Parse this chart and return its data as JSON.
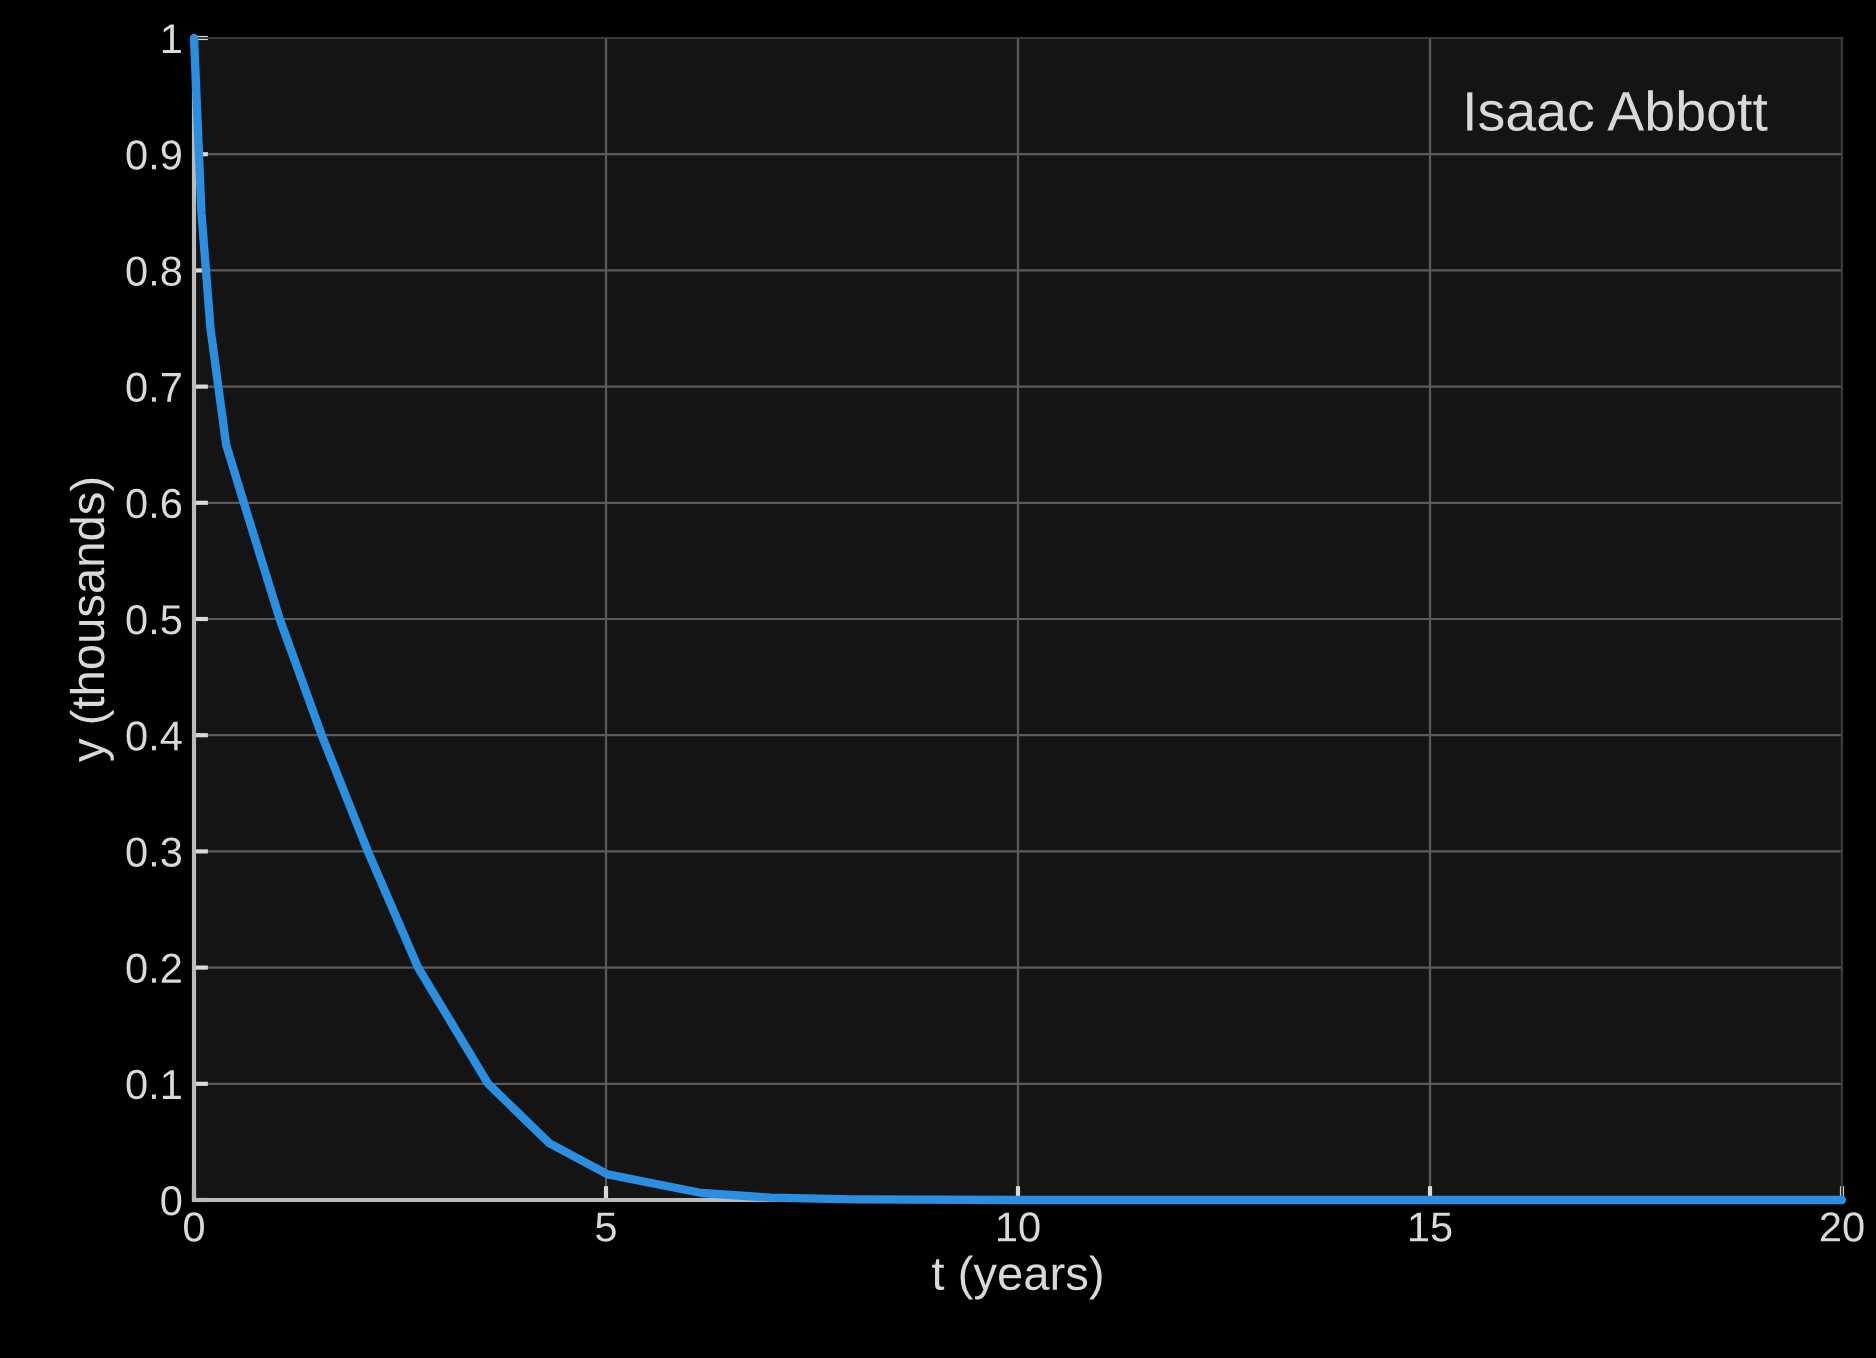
{
  "chart_data": {
    "type": "line",
    "xlabel": "t (years)",
    "ylabel": "y (thousands)",
    "annotations": [
      "Isaac Abbott"
    ],
    "x": [
      0,
      0.09,
      0.2,
      0.39,
      0.67,
      1.04,
      1.55,
      2.11,
      2.72,
      3.57,
      4.31,
      5.02,
      6.16,
      7,
      8,
      10,
      15,
      20
    ],
    "series": [
      {
        "color": "#2a8fe0",
        "values": [
          1.0,
          0.85,
          0.75,
          0.65,
          0.585,
          0.5,
          0.4,
          0.3,
          0.2,
          0.1,
          0.049,
          0.022,
          0.006,
          0.002,
          0.0005,
          0,
          0,
          0
        ]
      }
    ],
    "xlim": [
      0,
      20
    ],
    "xticks": [
      0,
      5,
      10,
      15,
      20
    ],
    "ylim": [
      0,
      1
    ],
    "yticks": [
      0,
      {
        "value": 0.1,
        "label": "0.1"
      },
      {
        "value": 0.2,
        "label": "0.2"
      },
      {
        "value": 0.3,
        "label": "0.3"
      },
      {
        "value": 0.4,
        "label": "0.4"
      },
      {
        "value": 0.5,
        "label": "0.5"
      },
      {
        "value": 0.6,
        "label": "0.6"
      },
      {
        "value": 0.7,
        "label": "0.7"
      },
      {
        "value": 0.8,
        "label": "0.8"
      },
      {
        "value": 0.9,
        "label": "0.9"
      },
      1
    ],
    "grid": true,
    "line_style": "solid"
  }
}
